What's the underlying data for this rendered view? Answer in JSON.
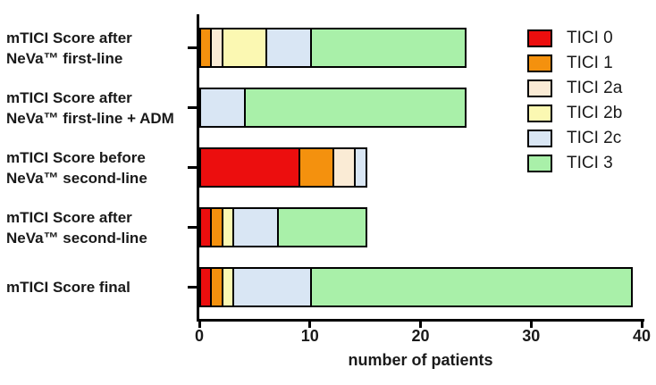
{
  "chart_data": {
    "type": "bar",
    "orientation": "horizontal",
    "stacked": true,
    "title": "",
    "xlabel": "number of patients",
    "xlim": [
      0,
      40
    ],
    "xticks": [
      0,
      10,
      20,
      30,
      40
    ],
    "grid": false,
    "legend_position": "top-right",
    "axis_color": "#000000",
    "bar_border_color": "#000000",
    "categories": [
      [
        "mTICI Score after",
        "NeVa™ first-line"
      ],
      [
        "mTICI Score after",
        "NeVa™ first-line + ADM"
      ],
      [
        "mTICI Score before",
        "NeVa™ second-line"
      ],
      [
        "mTICI Score after",
        "NeVa™ second-line"
      ],
      [
        "mTICI Score final"
      ]
    ],
    "totals": [
      24,
      24,
      15,
      15,
      39
    ],
    "series": [
      {
        "name": "TICI 0",
        "color": "#EC0E0E",
        "values": [
          0,
          0,
          9,
          1,
          1
        ]
      },
      {
        "name": "TICI 1",
        "color": "#F4910E",
        "values": [
          1,
          0,
          3,
          1,
          1
        ]
      },
      {
        "name": "TICI 2a",
        "color": "#FAEBD5",
        "values": [
          1,
          0,
          2,
          0,
          0
        ]
      },
      {
        "name": "TICI 2b",
        "color": "#FBF8B2",
        "values": [
          4,
          0,
          0,
          1,
          1
        ]
      },
      {
        "name": "TICI 2c",
        "color": "#D9E6F4",
        "values": [
          4,
          4,
          1,
          4,
          7
        ]
      },
      {
        "name": "TICI 3",
        "color": "#A9F0A9",
        "values": [
          14,
          20,
          0,
          8,
          29
        ]
      }
    ]
  }
}
